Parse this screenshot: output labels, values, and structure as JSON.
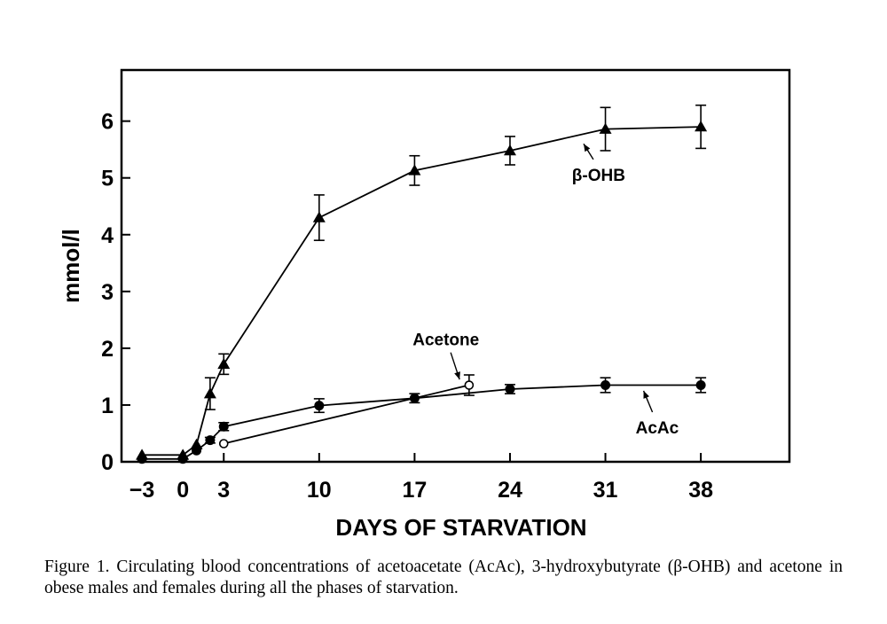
{
  "chart_data": {
    "type": "line",
    "xlabel": "DAYS OF STARVATION",
    "ylabel": "mmol/l",
    "xlim": [
      -4.5,
      44.5
    ],
    "ylim": [
      0,
      6.9
    ],
    "x_ticks": [
      -3,
      0,
      3,
      10,
      17,
      24,
      31,
      38
    ],
    "x_tick_labels": [
      "−3",
      "0",
      "3",
      "10",
      "17",
      "24",
      "31",
      "38"
    ],
    "y_ticks": [
      0,
      1,
      2,
      3,
      4,
      5,
      6
    ],
    "y_tick_labels": [
      "0",
      "1",
      "2",
      "3",
      "4",
      "5",
      "6"
    ],
    "grid": false,
    "series": [
      {
        "name": "β-OHB",
        "marker": "filled-triangle",
        "points": [
          {
            "x": -3,
            "y": 0.12
          },
          {
            "x": 0,
            "y": 0.12
          },
          {
            "x": 1,
            "y": 0.3
          },
          {
            "x": 2,
            "y": 1.2,
            "err": 0.28
          },
          {
            "x": 3,
            "y": 1.72,
            "err": 0.18
          },
          {
            "x": 10,
            "y": 4.3,
            "err": 0.4
          },
          {
            "x": 17,
            "y": 5.13,
            "err": 0.26
          },
          {
            "x": 24,
            "y": 5.48,
            "err": 0.25
          },
          {
            "x": 31,
            "y": 5.86,
            "err": 0.38
          },
          {
            "x": 38,
            "y": 5.9,
            "err": 0.38
          }
        ]
      },
      {
        "name": "AcAc",
        "marker": "filled-circle",
        "points": [
          {
            "x": -3,
            "y": 0.05
          },
          {
            "x": 0,
            "y": 0.05
          },
          {
            "x": 1,
            "y": 0.2
          },
          {
            "x": 2,
            "y": 0.38,
            "err": 0.05
          },
          {
            "x": 3,
            "y": 0.62,
            "err": 0.07
          },
          {
            "x": 10,
            "y": 0.99,
            "err": 0.12
          },
          {
            "x": 17,
            "y": 1.12,
            "err": 0.08
          },
          {
            "x": 24,
            "y": 1.28,
            "err": 0.08
          },
          {
            "x": 31,
            "y": 1.35,
            "err": 0.13
          },
          {
            "x": 38,
            "y": 1.35,
            "err": 0.13
          }
        ]
      },
      {
        "name": "Acetone",
        "marker": "open-circle",
        "points": [
          {
            "x": 3,
            "y": 0.32
          },
          {
            "x": 21,
            "y": 1.35,
            "err": 0.18
          }
        ]
      }
    ],
    "annotations": [
      {
        "text": "β-OHB",
        "x": 30.5,
        "y": 4.95,
        "arrow_to": [
          29.4,
          5.6
        ]
      },
      {
        "text": "Acetone",
        "x": 19.3,
        "y": 2.05,
        "arrow_to": [
          20.3,
          1.45
        ]
      },
      {
        "text": "AcAc",
        "x": 34.8,
        "y": 0.5,
        "arrow_to": [
          33.8,
          1.25
        ]
      }
    ]
  },
  "caption": "Figure 1. Circulating blood concentrations of acetoacetate (AcAc), 3-hydroxybutyrate (β-OHB) and acetone in obese males and females during all the phases of starvation."
}
